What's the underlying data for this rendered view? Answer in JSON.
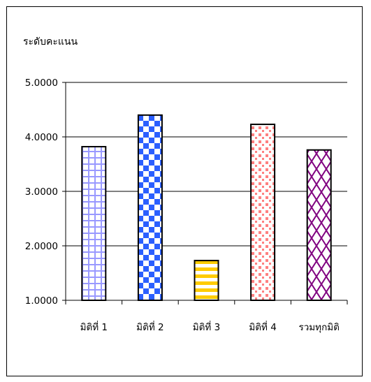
{
  "chart_data": {
    "type": "bar",
    "ylabel": "ระดับคะแนน",
    "xlabel": "",
    "title": "",
    "categories": [
      "มิติที่ 1",
      "มิติที่ 2",
      "มิติที่ 3",
      "มิติที่ 4",
      "รวมทุกมิติ"
    ],
    "values": [
      3.82,
      4.4,
      1.73,
      4.23,
      3.76
    ],
    "ylim": [
      1.0,
      5.0
    ],
    "yticks": [
      "1.0000",
      "2.0000",
      "3.0000",
      "4.0000",
      "5.0000"
    ],
    "grid": true,
    "legend": "none",
    "bar_patterns": [
      "grid",
      "checker",
      "stripes",
      "dots",
      "lattice"
    ],
    "colors": {
      "bar1": "#9999ff",
      "bar2": "#2b5fff",
      "bar3": "#ffcc00",
      "bar4": "#ff8080",
      "bar5": "#800080",
      "outline": "#000000",
      "gridline": "#000000"
    }
  }
}
